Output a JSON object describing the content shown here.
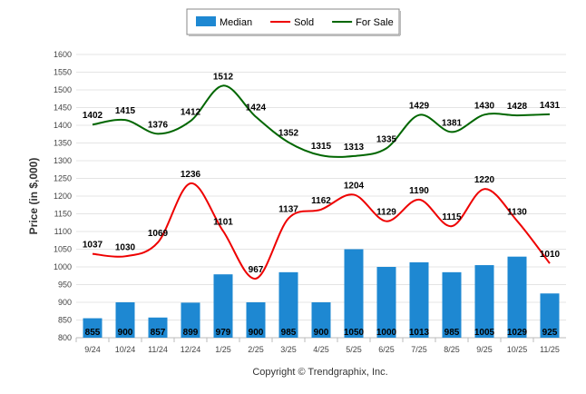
{
  "chart_data": {
    "type": "bar",
    "categories": [
      "9/24",
      "10/24",
      "11/24",
      "12/24",
      "1/25",
      "2/25",
      "3/25",
      "4/25",
      "5/25",
      "6/25",
      "7/25",
      "8/25",
      "9/25",
      "10/25",
      "11/25"
    ],
    "series": [
      {
        "name": "Median",
        "type": "bar",
        "color": "#1e88d2",
        "values": [
          855,
          900,
          857,
          899,
          979,
          900,
          985,
          900,
          1050,
          1000,
          1013,
          985,
          1005,
          1029,
          925
        ]
      },
      {
        "name": "Sold",
        "type": "line",
        "color": "#ee0000",
        "values": [
          1037,
          1030,
          1069,
          1236,
          1101,
          967,
          1137,
          1162,
          1204,
          1129,
          1190,
          1115,
          1220,
          1130,
          1010
        ]
      },
      {
        "name": "For Sale",
        "type": "line",
        "color": "#006600",
        "values": [
          1402,
          1415,
          1376,
          1412,
          1512,
          1424,
          1352,
          1315,
          1313,
          1335,
          1429,
          1381,
          1430,
          1428,
          1431
        ]
      }
    ],
    "ylabel": "Price (in $,000)",
    "xlabel": "",
    "ylim": [
      800,
      1600
    ],
    "yticks": [
      800,
      850,
      900,
      950,
      1000,
      1050,
      1100,
      1150,
      1200,
      1250,
      1300,
      1350,
      1400,
      1450,
      1500,
      1550,
      1600
    ],
    "grid": true,
    "legend_position": "top-center"
  },
  "footer": {
    "copyright": "Copyright © Trendgraphix, Inc."
  }
}
